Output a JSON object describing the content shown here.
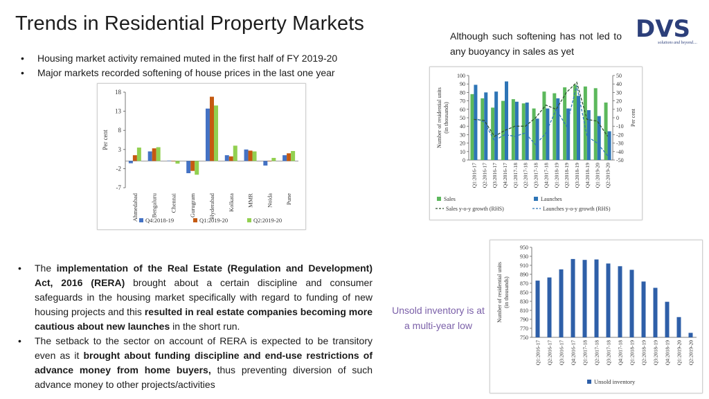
{
  "title": "Trends in Residential Property Markets",
  "logo": {
    "text": "DVS",
    "tagline": "solutions and beyond....",
    "color": "#2c3f7a"
  },
  "bullets_top": [
    "Housing market activity remained muted in the first half of FY 2019-20",
    "Major markets recorded softening of house prices in the last one year"
  ],
  "note_top": "Although such softening has not led to any buoyancy in sales as yet",
  "note_inventory": "Unsold inventory is at a multi-year low",
  "bullets_bottom": [
    {
      "t1": "The ",
      "b1": "implementation of the Real Estate (Regulation and Development) Act, 2016 (RERA)",
      "t2": " brought about a certain discipline and consumer safeguards in the housing market specifically with regard to funding of new housing projects and this ",
      "b2": "resulted in real estate companies becoming more cautious about new launches",
      "t3": " in the short run."
    },
    {
      "t1": "The setback to the sector on account of RERA is expected to be transitory even as it ",
      "b1": "brought about funding discipline and end-use restrictions of advance money from home buyers,",
      "t2": " thus preventing diversion of such advance money to other projects/activities",
      "b2": "",
      "t3": ""
    }
  ],
  "chart_data": [
    {
      "type": "bar",
      "categories": [
        "Ahmedabad",
        "Bengaluru",
        "Chennai",
        "Gurugram",
        "Hyderabad",
        "Kolkata",
        "MMR",
        "Noida",
        "Pune"
      ],
      "series": [
        {
          "name": "Q4:2018-19",
          "color": "#4472c4",
          "values": [
            -0.6,
            2.5,
            0.1,
            -3.2,
            13.7,
            1.5,
            3.0,
            -1.2,
            1.5
          ]
        },
        {
          "name": "Q1:2019-20",
          "color": "#c55a11",
          "values": [
            1.5,
            3.3,
            0.0,
            -2.6,
            16.8,
            1.2,
            2.7,
            0.0,
            2.0
          ]
        },
        {
          "name": "Q2:2019-20",
          "color": "#92d050",
          "values": [
            3.5,
            3.6,
            -0.7,
            -3.6,
            14.5,
            4.0,
            2.5,
            0.8,
            2.6
          ]
        }
      ],
      "ylabel": "Per cent",
      "ylim": [
        -7,
        18
      ],
      "yticks": [
        -7,
        -2,
        3,
        8,
        13,
        18
      ],
      "legend": "bottom",
      "grid": false
    },
    {
      "type": "bar",
      "categories": [
        "Q1:2016-17",
        "Q2:2016-17",
        "Q3:2016-17",
        "Q4:2016-17",
        "Q1:2017-18",
        "Q2:2017-18",
        "Q3:2017-18",
        "Q4:2017-18",
        "Q1:2018-19",
        "Q2:2018-19",
        "Q3:2018-19",
        "Q4:2018-19",
        "Q1:2019-20",
        "Q2:2019-20"
      ],
      "series": [
        {
          "name": "Sales",
          "kind": "bar",
          "axis": "left",
          "color": "#5cb85c",
          "values": [
            78,
            73,
            62,
            70,
            72,
            67,
            61,
            81,
            79,
            86,
            89,
            87,
            85,
            68
          ]
        },
        {
          "name": "Launches",
          "kind": "bar",
          "axis": "left",
          "color": "#2e75b6",
          "values": [
            89,
            80,
            81,
            93,
            69,
            68,
            49,
            61,
            73,
            61,
            76,
            59,
            52,
            34
          ]
        },
        {
          "name": "Sales y-o-y growth (RHS)",
          "kind": "line",
          "axis": "right",
          "style": "dashed",
          "color": "#2f4f2f",
          "values": [
            -2,
            -3,
            -22,
            -15,
            -10,
            -10,
            0,
            15,
            10,
            30,
            42,
            -2,
            -4,
            -22
          ]
        },
        {
          "name": "Launches y-o-y growth (RHS)",
          "kind": "line",
          "axis": "right",
          "style": "dashed",
          "color": "#2e75b6",
          "values": [
            0,
            -5,
            -27,
            -20,
            -22,
            -18,
            -32,
            -18,
            10,
            -10,
            38,
            -22,
            -30,
            -45
          ]
        }
      ],
      "ylabel": "Number of residential units (in thousands)",
      "ylim": [
        0,
        100
      ],
      "yticks": [
        0,
        10,
        20,
        30,
        40,
        50,
        60,
        70,
        80,
        90,
        100
      ],
      "y2label": "Per cent",
      "y2lim": [
        -50,
        50
      ],
      "y2ticks": [
        -50,
        -40,
        -30,
        -20,
        -10,
        0,
        10,
        20,
        30,
        40,
        50
      ],
      "legend": "bottom",
      "grid": false
    },
    {
      "type": "bar",
      "categories": [
        "Q1:2016-17",
        "Q2:2016-17",
        "Q3:2016-17",
        "Q4:2016-17",
        "Q1:2017-18",
        "Q2:2017-18",
        "Q3:2017-18",
        "Q4:2017-18",
        "Q1:2018-19",
        "Q2:2018-19",
        "Q3:2018-19",
        "Q4:2018-19",
        "Q1:2019-20",
        "Q2:2019-20"
      ],
      "series": [
        {
          "name": "Unsold inventory",
          "color": "#2e5fa8",
          "values": [
            876,
            883,
            901,
            924,
            922,
            923,
            914,
            908,
            900,
            874,
            860,
            829,
            795,
            760
          ]
        }
      ],
      "ylabel": "Number of residential units (in thousands)",
      "ylim": [
        750,
        950
      ],
      "yticks": [
        750,
        770,
        790,
        810,
        830,
        850,
        870,
        890,
        910,
        930,
        950
      ],
      "legend": "bottom",
      "grid": false
    }
  ]
}
